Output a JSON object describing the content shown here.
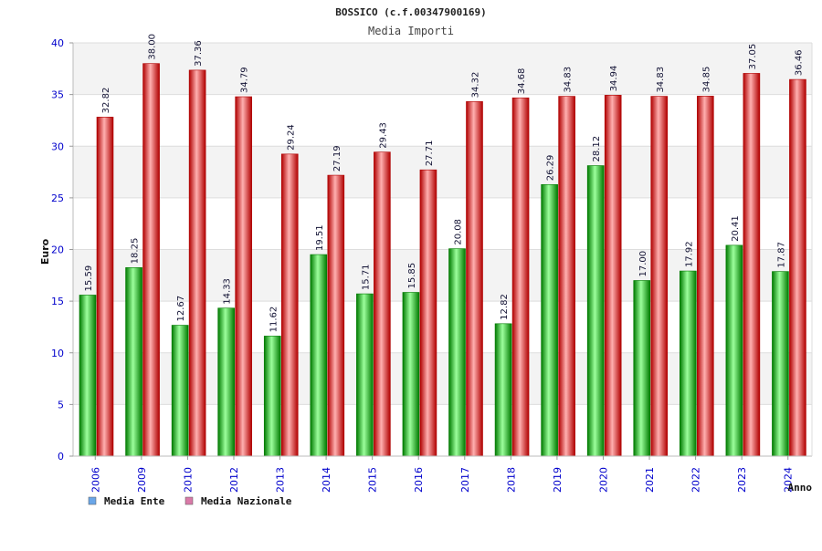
{
  "title": "BOSSICO (c.f.00347900169)",
  "subtitle": "Media Importi",
  "colors": {
    "ente": "#00bb00",
    "ente_light": "#9cff9c",
    "ente_dark": "#007a00",
    "naz": "#ee1111",
    "naz_light": "#ffb0b0",
    "naz_dark": "#b00000",
    "axis_text": "#0000cc",
    "band": "#f3f3f3"
  },
  "legend": [
    {
      "label": "Media Ente",
      "swatch": "#6aa6e8"
    },
    {
      "label": "Media Nazionale",
      "swatch": "#d97aa8"
    }
  ],
  "chart_data": {
    "type": "bar",
    "title": "BOSSICO (c.f.00347900169)",
    "subtitle": "Media Importi",
    "xlabel": "Anno",
    "ylabel": "Euro",
    "ylim": [
      0,
      40
    ],
    "yticks": [
      0,
      5,
      10,
      15,
      20,
      25,
      30,
      35,
      40
    ],
    "grid": true,
    "legend_position": "bottom-left",
    "categories": [
      "2006",
      "2009",
      "2010",
      "2012",
      "2013",
      "2014",
      "2015",
      "2016",
      "2017",
      "2018",
      "2019",
      "2020",
      "2021",
      "2022",
      "2023",
      "2024"
    ],
    "series": [
      {
        "name": "Media Ente",
        "values": [
          15.59,
          18.25,
          12.67,
          14.33,
          11.62,
          19.51,
          15.71,
          15.85,
          20.08,
          12.82,
          26.29,
          28.12,
          17.0,
          17.92,
          20.41,
          17.87
        ],
        "labels": [
          "15.59",
          "18.25",
          "12.67",
          "14.33",
          "11.62",
          "19.51",
          "15.71",
          "15.85",
          "20.08",
          "12.82",
          "26.29",
          "28.12",
          "17.00",
          "17.92",
          "20.41",
          "17.87"
        ]
      },
      {
        "name": "Media Nazionale",
        "values": [
          32.82,
          38.0,
          37.36,
          34.79,
          29.24,
          27.19,
          29.43,
          27.71,
          34.32,
          34.68,
          34.83,
          34.94,
          34.83,
          34.85,
          37.05,
          36.46
        ],
        "labels": [
          "32.82",
          "38.00",
          "37.36",
          "34.79",
          "29.24",
          "27.19",
          "29.43",
          "27.71",
          "34.32",
          "34.68",
          "34.83",
          "34.94",
          "34.83",
          "34.85",
          "37.05",
          "36.46"
        ]
      }
    ]
  }
}
